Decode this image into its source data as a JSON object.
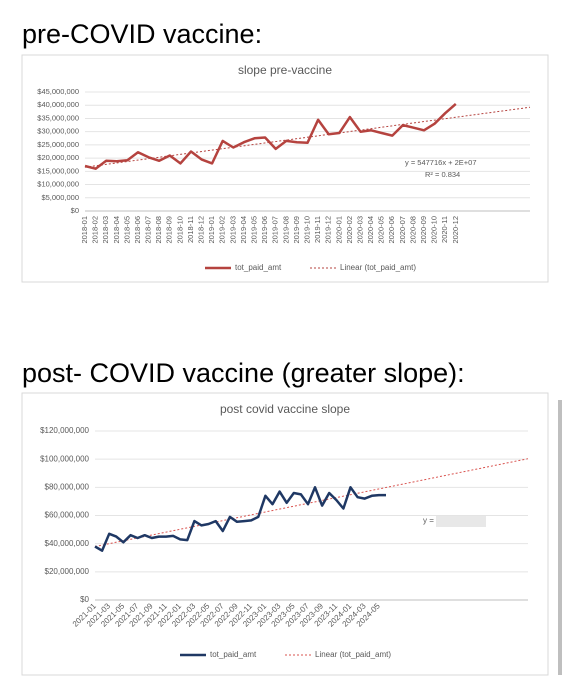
{
  "headings": [
    "pre-COVID vaccine:",
    "post- COVID vaccine (greater slope):"
  ],
  "chart_data": [
    {
      "type": "line",
      "title": "slope pre-vaccine",
      "categories": [
        "2018-01",
        "2018-02",
        "2018-03",
        "2018-04",
        "2018-05",
        "2018-06",
        "2018-07",
        "2018-08",
        "2018-09",
        "2018-10",
        "2018-11",
        "2018-12",
        "2019-01",
        "2019-02",
        "2019-03",
        "2019-04",
        "2019-05",
        "2019-06",
        "2019-07",
        "2019-08",
        "2019-09",
        "2019-10",
        "2019-11",
        "2019-12",
        "2020-01",
        "2020-02",
        "2020-03",
        "2020-04",
        "2020-05",
        "2020-06",
        "2020-07",
        "2020-08",
        "2020-09",
        "2020-10",
        "2020-11",
        "2020-12"
      ],
      "series": [
        {
          "name": "tot_paid_amt",
          "color": "#b5433f",
          "values": [
            17000000,
            16000000,
            19000000,
            18800000,
            19200000,
            22200000,
            20300000,
            19000000,
            21000000,
            18000000,
            22500000,
            19500000,
            18000000,
            26500000,
            24000000,
            26000000,
            27500000,
            27800000,
            23500000,
            26500000,
            26000000,
            25800000,
            34500000,
            29000000,
            29500000,
            35500000,
            30000000,
            30500000,
            29500000,
            28500000,
            32500000,
            31500000,
            30500000,
            33000000,
            37000000,
            40500000
          ]
        }
      ],
      "trendline": {
        "label": "Linear (tot_paid_amt)",
        "color": "#b5433f",
        "forecast": 7,
        "equation": "y = 547716x + 2E+07",
        "r2": "R² = 0.834"
      },
      "ylim": [
        0,
        45000000
      ],
      "yticks": [
        {
          "value": 0,
          "label": "$0"
        },
        {
          "value": 5000000,
          "label": "$5,000,000"
        },
        {
          "value": 10000000,
          "label": "$10,000,000"
        },
        {
          "value": 15000000,
          "label": "$15,000,000"
        },
        {
          "value": 20000000,
          "label": "$20,000,000"
        },
        {
          "value": 25000000,
          "label": "$25,000,000"
        },
        {
          "value": 30000000,
          "label": "$30,000,000"
        },
        {
          "value": 35000000,
          "label": "$35,000,000"
        },
        {
          "value": 40000000,
          "label": "$40,000,000"
        },
        {
          "value": 45000000,
          "label": "$45,000,000"
        }
      ],
      "grid": true
    },
    {
      "type": "line",
      "title": "post covid vaccine slope",
      "categories": [
        "2021-01",
        null,
        "2021-03",
        null,
        "2021-05",
        null,
        "2021-07",
        null,
        "2021-09",
        null,
        "2021-11",
        null,
        "2022-01",
        null,
        "2022-03",
        null,
        "2022-05",
        null,
        "2022-07",
        null,
        "2022-09",
        null,
        "2022-11",
        null,
        "2023-01",
        null,
        "2023-03",
        null,
        "2023-05",
        null,
        "2023-07",
        null,
        "2023-09",
        null,
        "2023-11",
        null,
        "2024-01",
        null,
        "2024-03",
        null,
        "2024-05",
        null
      ],
      "series": [
        {
          "name": "tot_paid_amt",
          "color": "#1f3864",
          "values": [
            38000000,
            35000000,
            47000000,
            45000000,
            41000000,
            46000000,
            44000000,
            46000000,
            44000000,
            45000000,
            45000000,
            45500000,
            43000000,
            42500000,
            56000000,
            53000000,
            54000000,
            56000000,
            49000000,
            59000000,
            55500000,
            56000000,
            56500000,
            59000000,
            74000000,
            68000000,
            77000000,
            69000000,
            76000000,
            75000000,
            68000000,
            80000000,
            67000000,
            76000000,
            71000000,
            65000000,
            80000000,
            73000000,
            72000000,
            74000000,
            74500000,
            74500000
          ]
        }
      ],
      "trendline": {
        "label": "Linear (tot_paid_amt)",
        "color": "#d9534f",
        "forecast": 20
      },
      "ylim": [
        0,
        120000000
      ],
      "yticks": [
        {
          "value": 0,
          "label": "$0"
        },
        {
          "value": 20000000,
          "label": "$20,000,000"
        },
        {
          "value": 40000000,
          "label": "$40,000,000"
        },
        {
          "value": 60000000,
          "label": "$60,000,000"
        },
        {
          "value": 80000000,
          "label": "$80,000,000"
        },
        {
          "value": 100000000,
          "label": "$100,000,000"
        },
        {
          "value": 120000000,
          "label": "$120,000,000"
        }
      ],
      "grid": true
    }
  ]
}
